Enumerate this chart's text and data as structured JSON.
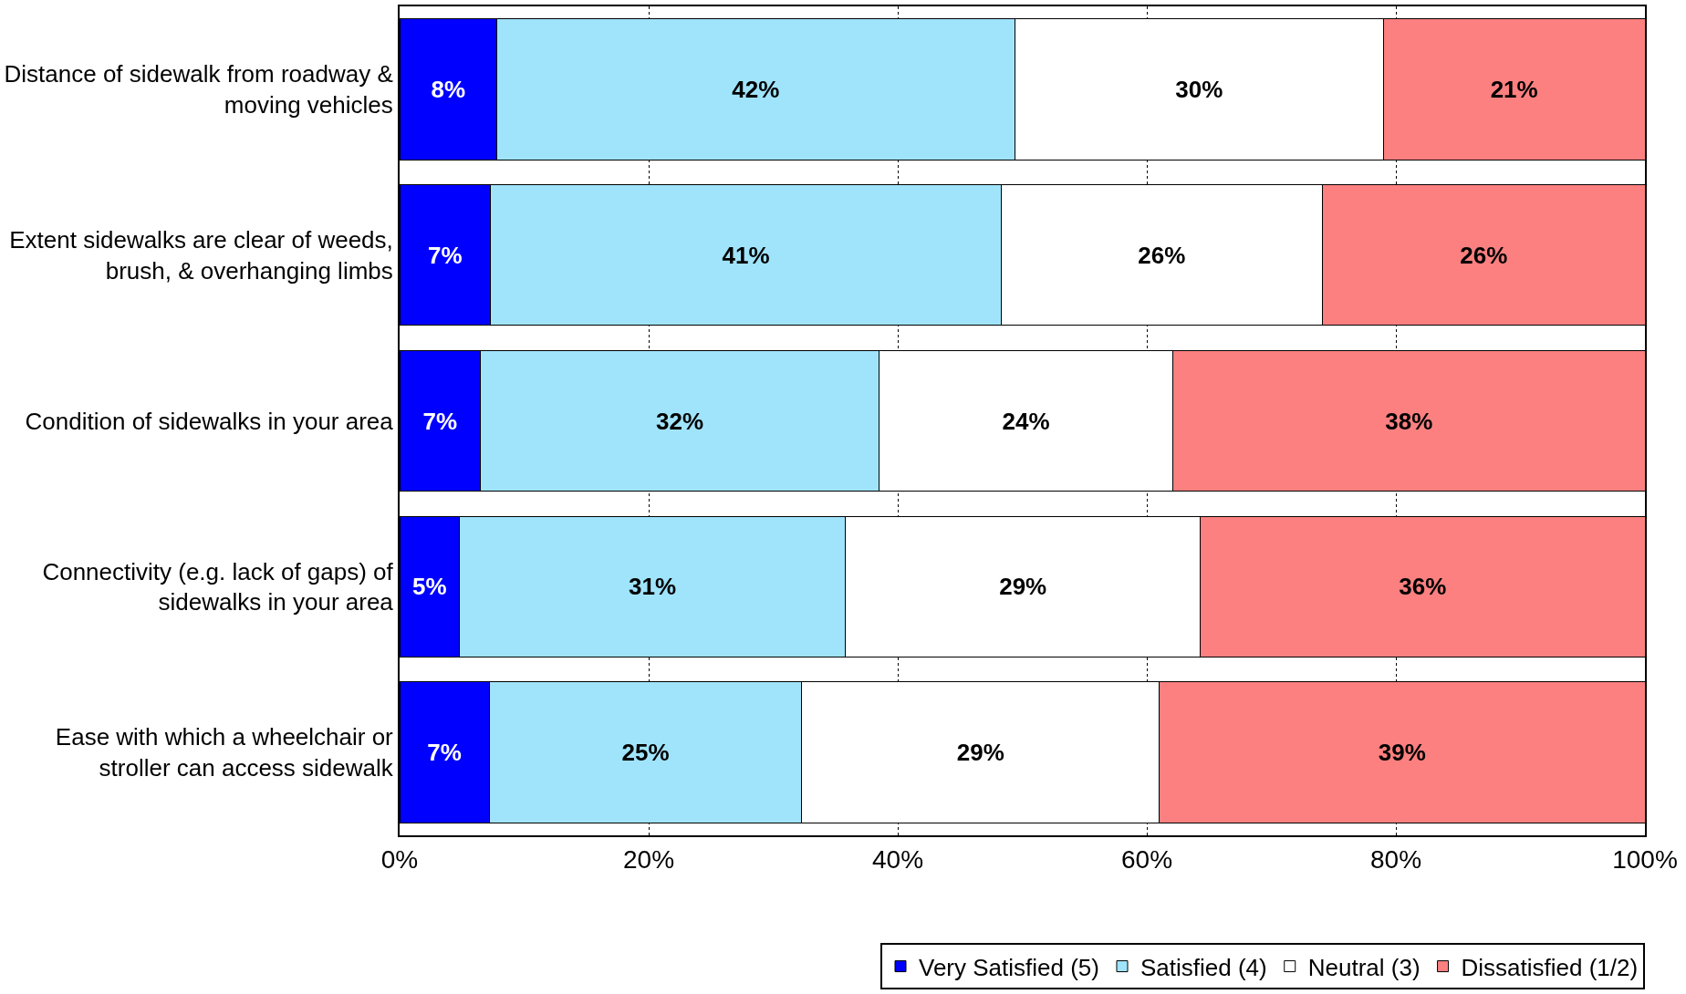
{
  "chart_data": {
    "type": "bar",
    "orientation": "horizontal",
    "stacked": true,
    "categories": [
      "Distance of sidewalk from roadway & moving vehicles",
      "Extent sidewalks are clear of weeds, brush, & overhanging limbs",
      "Condition of sidewalks in your area",
      "Connectivity (e.g. lack of gaps) of sidewalks in your area",
      "Ease with which a wheelchair or stroller can access sidewalk"
    ],
    "series": [
      {
        "name": "Very Satisfied (5)",
        "color": "#0000ff",
        "values": [
          7.8,
          7.3,
          6.5,
          4.8,
          7.2
        ],
        "value_labels": [
          "8%",
          "7%",
          "7%",
          "5%",
          "7%"
        ]
      },
      {
        "name": "Satisfied (4)",
        "color": "#a0e4fc",
        "values": [
          41.6,
          41.0,
          32.0,
          31.0,
          25.1
        ],
        "value_labels": [
          "42%",
          "41%",
          "32%",
          "31%",
          "25%"
        ]
      },
      {
        "name": "Neutral (3)",
        "color": "#ffffff",
        "values": [
          29.6,
          25.8,
          23.6,
          28.5,
          28.7
        ],
        "value_labels": [
          "30%",
          "26%",
          "24%",
          "29%",
          "29%"
        ]
      },
      {
        "name": "Dissatisfied (1/2)",
        "color": "#fc8080",
        "values": [
          21.0,
          25.9,
          37.9,
          35.7,
          39.0
        ],
        "value_labels": [
          "21%",
          "26%",
          "38%",
          "36%",
          "39%"
        ]
      }
    ],
    "xlim": [
      0,
      100
    ],
    "xticks": [
      {
        "value": 0,
        "label": "0%"
      },
      {
        "value": 20,
        "label": "20%"
      },
      {
        "value": 40,
        "label": "40%"
      },
      {
        "value": 60,
        "label": "60%"
      },
      {
        "value": 80,
        "label": "80%"
      },
      {
        "value": 100,
        "label": "100%"
      }
    ],
    "grid": "x",
    "legend": "bottom"
  }
}
